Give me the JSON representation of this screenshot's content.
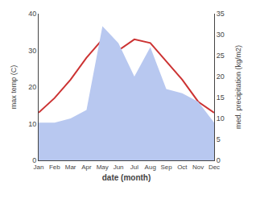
{
  "chart_data": {
    "type": "line",
    "xlabel": "date (month)",
    "ylabel": "max temp (C)",
    "y2label": "med. precipitation (kg/m2)",
    "categories": [
      "Jan",
      "Feb",
      "Mar",
      "Apr",
      "May",
      "Jun",
      "Jul",
      "Aug",
      "Sep",
      "Oct",
      "Nov",
      "Dec"
    ],
    "series": [
      {
        "type": "area",
        "axis": "y2",
        "color": "#b8c8f0",
        "values": [
          9,
          9,
          10,
          12,
          32,
          28,
          20,
          27,
          17,
          16,
          14,
          9
        ]
      },
      {
        "type": "line",
        "color": "#cc3333",
        "values": [
          13,
          17,
          22,
          28,
          33,
          30,
          33,
          32,
          27,
          22,
          16,
          13
        ]
      }
    ],
    "ylim": [
      0,
      40
    ],
    "yticks": [
      0,
      10,
      20,
      30,
      40
    ],
    "y2lim": [
      0,
      35
    ],
    "y2ticks": [
      0,
      5,
      10,
      15,
      20,
      25,
      30,
      35
    ],
    "grid": false
  }
}
